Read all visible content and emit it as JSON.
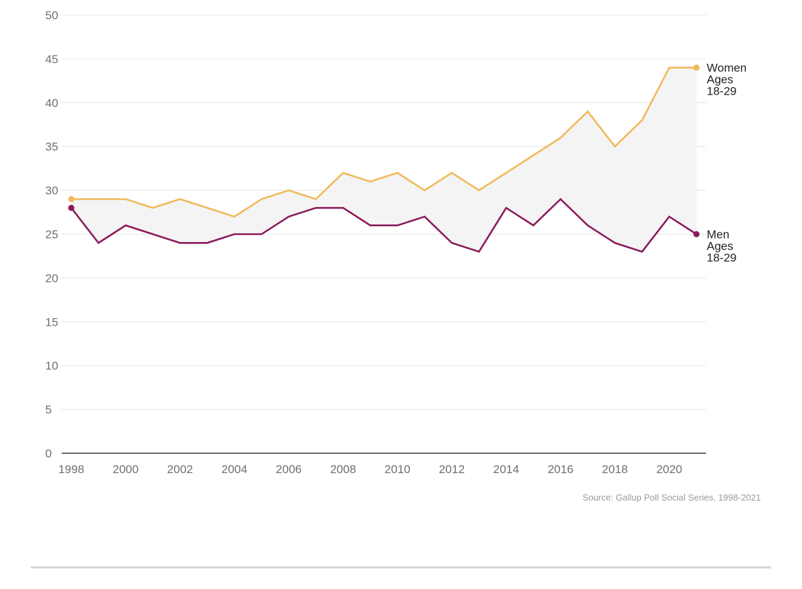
{
  "chart_data": {
    "type": "line",
    "x": [
      1998,
      1999,
      2000,
      2001,
      2002,
      2003,
      2004,
      2005,
      2006,
      2007,
      2008,
      2009,
      2010,
      2011,
      2012,
      2013,
      2014,
      2015,
      2016,
      2017,
      2018,
      2019,
      2020,
      2021
    ],
    "x_tick_labels": [
      "1998",
      "2000",
      "2002",
      "2004",
      "2006",
      "2008",
      "2010",
      "2012",
      "2014",
      "2016",
      "2018",
      "2020"
    ],
    "y_tick_labels": [
      "0",
      "5",
      "10",
      "15",
      "20",
      "25",
      "30",
      "35",
      "40",
      "45",
      "50"
    ],
    "ylim": [
      0,
      50
    ],
    "grid": true,
    "gap_fill": "#f4f4f4",
    "series": [
      {
        "name_lines": [
          "Women",
          "Ages",
          "18-29"
        ],
        "color": "#f0b95a",
        "values": [
          29,
          29,
          29,
          28,
          29,
          28,
          27,
          29,
          30,
          29,
          32,
          31,
          32,
          30,
          32,
          30,
          32,
          34,
          36,
          39,
          35,
          38,
          44,
          44
        ]
      },
      {
        "name_lines": [
          "Men",
          "Ages",
          "18-29"
        ],
        "color": "#8b1a5a",
        "values": [
          28,
          24,
          26,
          25,
          24,
          24,
          25,
          25,
          27,
          28,
          28,
          26,
          26,
          27,
          24,
          23,
          28,
          26,
          29,
          26,
          24,
          23,
          27,
          25
        ]
      }
    ]
  },
  "source": "Source: Gallup Poll Social Series, 1998-2021"
}
